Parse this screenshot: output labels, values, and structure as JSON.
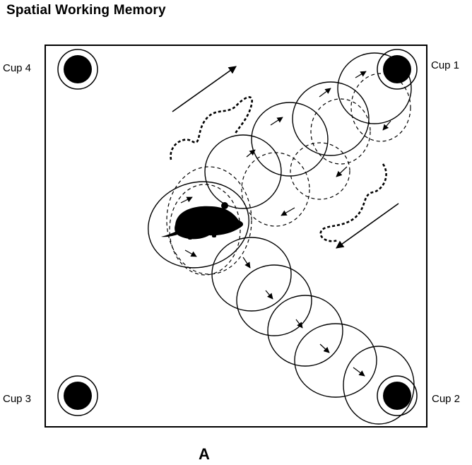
{
  "title": "Spatial Working Memory",
  "cups": {
    "cup1": "Cup 1",
    "cup2": "Cup 2",
    "cup3": "Cup 3",
    "cup4": "Cup 4"
  },
  "panel_label": "A",
  "colors": {
    "ink": "#000000",
    "background": "#ffffff"
  },
  "icons": [
    "rat-silhouette-icon",
    "arrow-icon",
    "cup-icon"
  ]
}
